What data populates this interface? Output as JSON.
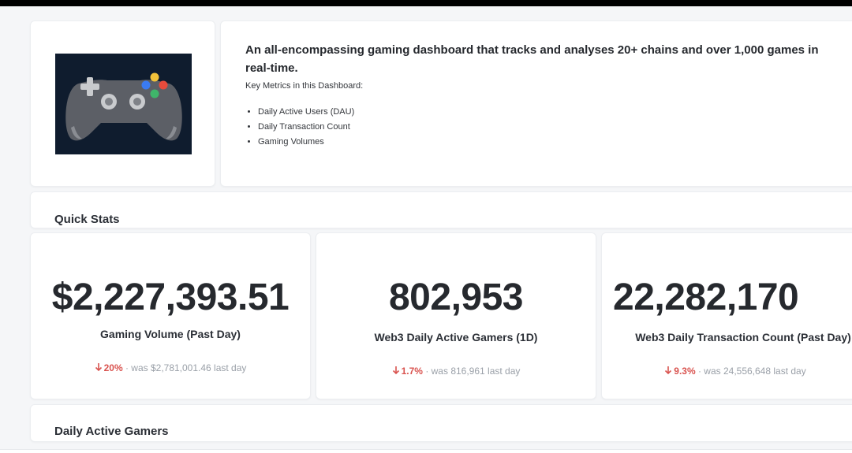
{
  "description": {
    "title": "An all-encompassing gaming dashboard that tracks and analyses 20+ chains and over 1,000 games in real-time.",
    "subtitle": "Key Metrics in this Dashboard:",
    "metrics": [
      "Daily Active Users (DAU)",
      "Daily Transaction Count",
      "Gaming Volumes"
    ]
  },
  "image": {
    "icon": "game-controller-icon",
    "background": "#0f1c2e"
  },
  "sections": {
    "quick_stats_title": "Quick Stats",
    "daily_active_title": "Daily Active Gamers"
  },
  "stats": [
    {
      "value": "$2,227,393.51",
      "label": "Gaming Volume (Past Day)",
      "change": "20%",
      "previous": "· was $2,781,001.46 last day"
    },
    {
      "value": "802,953",
      "label": "Web3 Daily Active Gamers (1D)",
      "change": "1.7%",
      "previous": "· was 816,961 last day"
    },
    {
      "value": "22,282,170",
      "label": "Web3 Daily Transaction Count (Past Day)",
      "change": "9.3%",
      "previous": "· was 24,556,648 last day"
    }
  ],
  "colors": {
    "negative": "#d9534f",
    "muted": "#9aa0a8"
  }
}
